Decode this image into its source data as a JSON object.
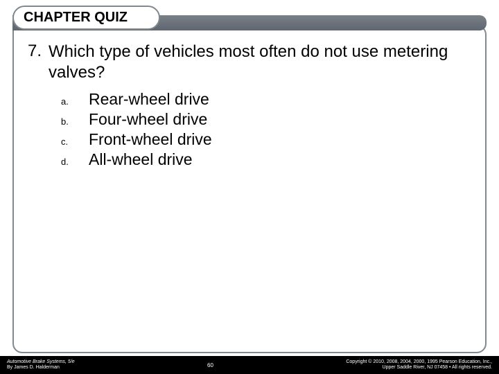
{
  "header": {
    "title": "CHAPTER QUIZ"
  },
  "question": {
    "number": "7.",
    "text": "Which type of vehicles most often do not use metering valves?",
    "options": [
      {
        "letter": "a.",
        "text": "Rear-wheel drive"
      },
      {
        "letter": "b.",
        "text": "Four-wheel drive"
      },
      {
        "letter": "c.",
        "text": "Front-wheel drive"
      },
      {
        "letter": "d.",
        "text": "All-wheel drive"
      }
    ]
  },
  "footer": {
    "book_title": "Automotive Brake Systems, 5/e",
    "author": "By James D. Halderman",
    "page": "60",
    "copyright_line1": "Copyright © 2010, 2008, 2004, 2000, 1995 Pearson Education, Inc.,",
    "copyright_line2": "Upper Saddle River, NJ 07458 • All rights reserved."
  },
  "colors": {
    "frame_border": "#808890",
    "bar_gradient_top": "#7a8088",
    "bar_gradient_bottom": "#5f666f",
    "footer_bg": "#000000",
    "footer_text": "#ffffff",
    "text": "#000000",
    "background": "#ffffff"
  },
  "typography": {
    "title_fontsize": 20,
    "question_fontsize": 24,
    "option_letter_fontsize": 13,
    "option_text_fontsize": 23,
    "footer_fontsize": 7
  }
}
